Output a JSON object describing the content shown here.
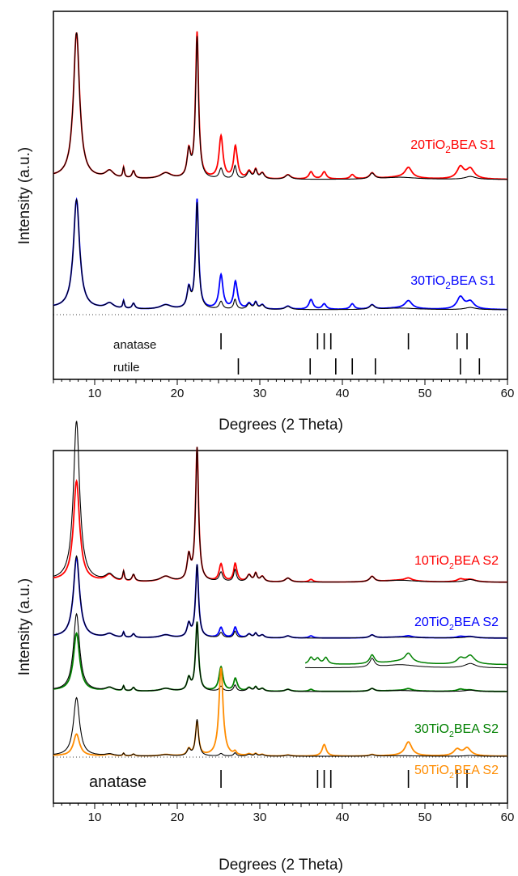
{
  "chart_data": [
    {
      "type": "line",
      "xlabel": "Degrees (2 Theta)",
      "ylabel": "Intensity (a.u.)",
      "xlim": [
        5,
        60
      ],
      "xticks": [
        10,
        20,
        30,
        40,
        50,
        60
      ],
      "series": [
        {
          "name": "20TiO2BEA S1",
          "label_main": "20TiO",
          "label_sub": "2",
          "label_rest": "BEA S1",
          "color": "#ff0000",
          "reference_color": "#000000",
          "peaks_bea": [
            [
              7.8,
              1.0
            ],
            [
              22.4,
              1.0
            ]
          ],
          "peaks_tio2": [
            [
              25.3,
              0.22
            ],
            [
              27.1,
              0.14
            ],
            [
              36.2,
              0.05
            ],
            [
              37.8,
              0.05
            ],
            [
              41.2,
              0.03
            ],
            [
              48.0,
              0.07
            ],
            [
              54.3,
              0.08
            ],
            [
              55.5,
              0.05
            ]
          ]
        },
        {
          "name": "30TiO2BEA S1",
          "label_main": "30TiO",
          "label_sub": "2",
          "label_rest": "BEA S1",
          "color": "#0000ff",
          "reference_color": "#000000",
          "peaks_bea": [
            [
              7.8,
              1.0
            ],
            [
              22.4,
              1.0
            ]
          ],
          "peaks_tio2": [
            [
              25.3,
              0.24
            ],
            [
              27.1,
              0.17
            ],
            [
              36.2,
              0.09
            ],
            [
              37.8,
              0.05
            ],
            [
              41.2,
              0.05
            ],
            [
              48.0,
              0.07
            ],
            [
              54.3,
              0.11
            ],
            [
              55.5,
              0.05
            ]
          ]
        }
      ],
      "reference_markers": [
        {
          "label": "anatase",
          "positions": [
            25.3,
            37.0,
            37.8,
            38.6,
            48.0,
            53.9,
            55.1
          ]
        },
        {
          "label": "rutile",
          "positions": [
            27.4,
            36.1,
            39.2,
            41.2,
            44.0,
            54.3,
            56.6
          ]
        }
      ]
    },
    {
      "type": "line",
      "xlabel": "Degrees (2 Theta)",
      "ylabel": "Intensity (a.u.)",
      "xlim": [
        5,
        60
      ],
      "xticks": [
        10,
        20,
        30,
        40,
        50,
        60
      ],
      "series": [
        {
          "name": "10TiO2BEA S2",
          "label_main": "10TiO",
          "label_sub": "2",
          "label_rest": "BEA S2",
          "color": "#ff0000",
          "reference_color": "#000000",
          "peaks_bea": [
            [
              7.8,
              0.75
            ],
            [
              22.4,
              1.0
            ]
          ],
          "peaks_tio2": [
            [
              25.3,
              0.06
            ],
            [
              27.1,
              0.05
            ],
            [
              36.2,
              0.02
            ],
            [
              48.0,
              0.02
            ],
            [
              54.3,
              0.02
            ]
          ]
        },
        {
          "name": "20TiO2BEA S2",
          "label_main": "20TiO",
          "label_sub": "2",
          "label_rest": "BEA S2",
          "color": "#0000ff",
          "reference_color": "#000000",
          "peaks_bea": [
            [
              7.8,
              1.1
            ],
            [
              22.4,
              1.0
            ]
          ],
          "peaks_tio2": [
            [
              25.3,
              0.07
            ],
            [
              27.1,
              0.06
            ],
            [
              36.2,
              0.03
            ],
            [
              48.0,
              0.02
            ],
            [
              54.3,
              0.02
            ]
          ]
        },
        {
          "name": "30TiO2BEA S2",
          "label_main": "30TiO",
          "label_sub": "2",
          "label_rest": "BEA S2",
          "color": "#008000",
          "reference_color": "#000000",
          "peaks_bea": [
            [
              7.8,
              0.84
            ],
            [
              22.4,
              1.0
            ]
          ],
          "peaks_tio2": [
            [
              25.3,
              0.28
            ],
            [
              27.1,
              0.1
            ],
            [
              36.2,
              0.03
            ],
            [
              48.0,
              0.03
            ],
            [
              54.3,
              0.03
            ]
          ]
        },
        {
          "name": "50TiO2BEA S2",
          "label_main": "50TiO",
          "label_sub": "2",
          "label_rest": "BEA S2",
          "color": "#ff8c00",
          "reference_color": "#000000",
          "peaks_bea": [
            [
              7.8,
              0.6
            ],
            [
              22.4,
              0.95
            ]
          ],
          "peaks_tio2": [
            [
              25.3,
              2.35
            ],
            [
              37.8,
              0.32
            ],
            [
              48.0,
              0.38
            ],
            [
              53.9,
              0.18
            ],
            [
              55.1,
              0.2
            ]
          ]
        }
      ],
      "inset": {
        "series": "30TiO2BEA S2",
        "xlim": [
          35.5,
          60
        ]
      },
      "reference_markers": [
        {
          "label": "anatase",
          "positions": [
            25.3,
            37.0,
            37.8,
            38.6,
            48.0,
            53.9,
            55.1
          ]
        }
      ]
    }
  ]
}
